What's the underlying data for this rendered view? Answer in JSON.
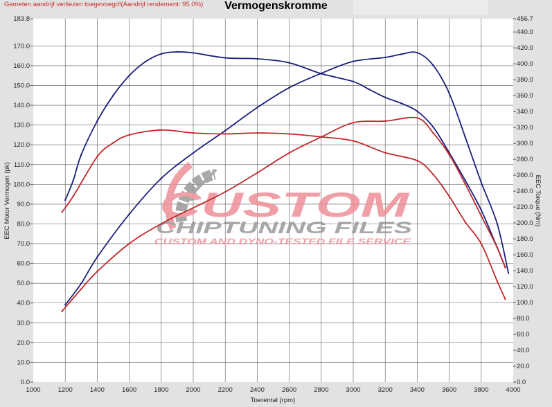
{
  "header": {
    "note": "Gemeten aandrijf verliezen toegevoegd!(Aandrijf rendement: 95.0%)",
    "title": "Vermogenskromme"
  },
  "watermark": {
    "line1": "CUSTOM",
    "line2": "CHIPTUNING FILES",
    "line3": "CUSTOM AND DYNO-TESTED FILE SERVICE",
    "colors": {
      "pink": "#ee8f98",
      "gray": "#9a9a9a"
    }
  },
  "chart_data": {
    "type": "line",
    "title": "Vermogenskromme",
    "xlabel": "Toerental (rpm)",
    "ylabel": "EEC Motor Vermogen (pk)",
    "y2label": "EEC Torque (Nm)",
    "xlim": [
      1000,
      4000
    ],
    "ylim": [
      0,
      183.8
    ],
    "y2lim": [
      0,
      456.7
    ],
    "grid": true,
    "xticks": [
      "1000",
      "1200",
      "1400",
      "1600",
      "1800",
      "2000",
      "2200",
      "2400",
      "2600",
      "2800",
      "3000",
      "3200",
      "3400",
      "3600",
      "3800",
      "4000"
    ],
    "yticks": [
      "0.0",
      "10.0",
      "20.0",
      "30.0",
      "40.0",
      "50.0",
      "60.0",
      "70.0",
      "80.0",
      "90.0",
      "100.0",
      "110.0",
      "120.0",
      "130.0",
      "140.0",
      "150.0",
      "160.0",
      "170.0",
      "183.8"
    ],
    "y2ticks": [
      "0.0",
      "20.0",
      "40.0",
      "60.0",
      "80.0",
      "100.0",
      "120.0",
      "140.0",
      "160.0",
      "180.0",
      "200.0",
      "220.0",
      "240.0",
      "260.0",
      "280.0",
      "300.0",
      "320.0",
      "340.0",
      "360.0",
      "380.0",
      "400.0",
      "420.0",
      "440.0",
      "456.7"
    ],
    "series": [
      {
        "axis": "left",
        "color": "#1a1f7a",
        "x": [
          1200,
          1250,
          1300,
          1400,
          1500,
          1600,
          1700,
          1800,
          1900,
          2000,
          2200,
          2400,
          2600,
          2800,
          3000,
          3100,
          3200,
          3300,
          3400,
          3500,
          3600,
          3700,
          3800,
          3900,
          3950
        ],
        "y": [
          92,
          102,
          115,
          132,
          145,
          155,
          162,
          166,
          167,
          166.5,
          164,
          163.5,
          161.5,
          156,
          152,
          148,
          144,
          141,
          137,
          129,
          116,
          102,
          87,
          68,
          58
        ]
      },
      {
        "axis": "right",
        "color": "#1a1f7a",
        "x": [
          1200,
          1300,
          1400,
          1600,
          1800,
          2000,
          2200,
          2400,
          2600,
          2800,
          3000,
          3200,
          3300,
          3400,
          3500,
          3600,
          3700,
          3800,
          3900,
          3970
        ],
        "y": [
          97,
          124,
          157,
          211,
          256,
          288,
          316,
          345,
          370,
          388,
          403,
          408,
          412,
          414,
          398,
          363,
          308,
          251,
          199,
          137
        ]
      },
      {
        "axis": "left",
        "color": "#c0282a",
        "x": [
          1180,
          1250,
          1400,
          1500,
          1600,
          1800,
          2000,
          2200,
          2400,
          2600,
          2800,
          3000,
          3200,
          3400,
          3500,
          3600,
          3700,
          3800,
          3900,
          3950
        ],
        "y": [
          86,
          94,
          114,
          121,
          125,
          127.5,
          126,
          125.5,
          126,
          125.5,
          124,
          122,
          116,
          112,
          105,
          94,
          81,
          70,
          51,
          42
        ]
      },
      {
        "axis": "right",
        "color": "#c0282a",
        "x": [
          1180,
          1300,
          1400,
          1600,
          1800,
          2000,
          2200,
          2400,
          2600,
          2800,
          3000,
          3200,
          3400,
          3500,
          3600,
          3700,
          3800,
          3900,
          3950
        ],
        "y": [
          89,
          117,
          139,
          174,
          199,
          219,
          239,
          263,
          288,
          308,
          326,
          328,
          332,
          313,
          286,
          249,
          209,
          169,
          144
        ]
      }
    ]
  }
}
